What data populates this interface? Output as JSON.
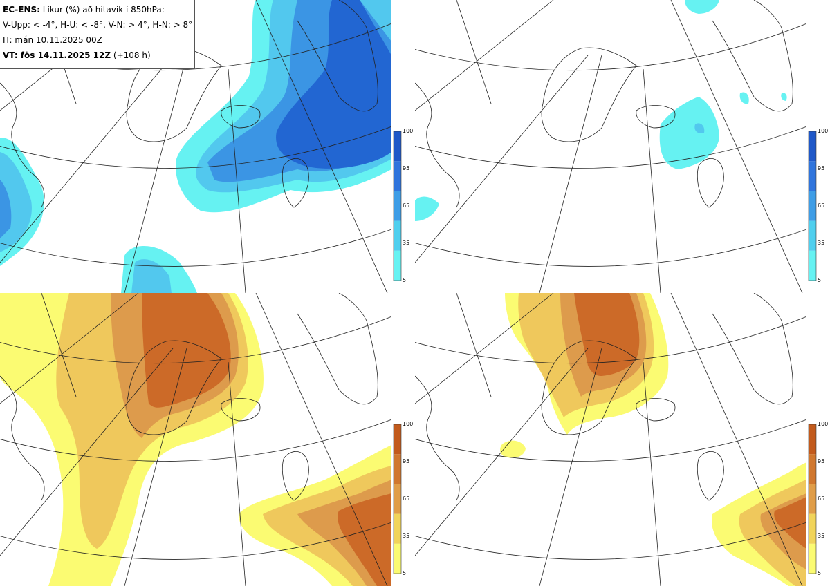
{
  "legend": {
    "line1_bold": "EC-ENS:",
    "line1_rest": " Líkur (%) að hitavik í 850hPa:",
    "line2": "V-Upp: < -4°, H-U: < -8°, V-N: > 4°, H-N: > 8°",
    "line3": "IT: mán 10.11.2025 00Z",
    "line4_bold": "VT: fös 14.11.2025 12Z",
    "line4_rest": " (+108 h)"
  },
  "panels": [
    {
      "id": "V-Upp",
      "palette": "blue"
    },
    {
      "id": "H-U",
      "palette": "blue"
    },
    {
      "id": "V-N",
      "palette": "orange"
    },
    {
      "id": "H-N",
      "palette": "orange"
    }
  ],
  "colorbar": {
    "ticks": [
      "100",
      "95",
      "65",
      "35",
      "5"
    ],
    "blue_colors": [
      "#66f2f2",
      "#4fcfee",
      "#3e9de6",
      "#2f74dc",
      "#1f58c8"
    ],
    "orange_colors": [
      "#fbfb72",
      "#f1d45a",
      "#e09d48",
      "#d0772e",
      "#c25a1c"
    ]
  },
  "colors": {
    "blue": [
      "#66f2f2",
      "#52c8ee",
      "#3b95e4",
      "#2266d2"
    ],
    "orange": [
      "#fbfb72",
      "#efc85c",
      "#dd9b4c",
      "#cc6a28"
    ]
  }
}
